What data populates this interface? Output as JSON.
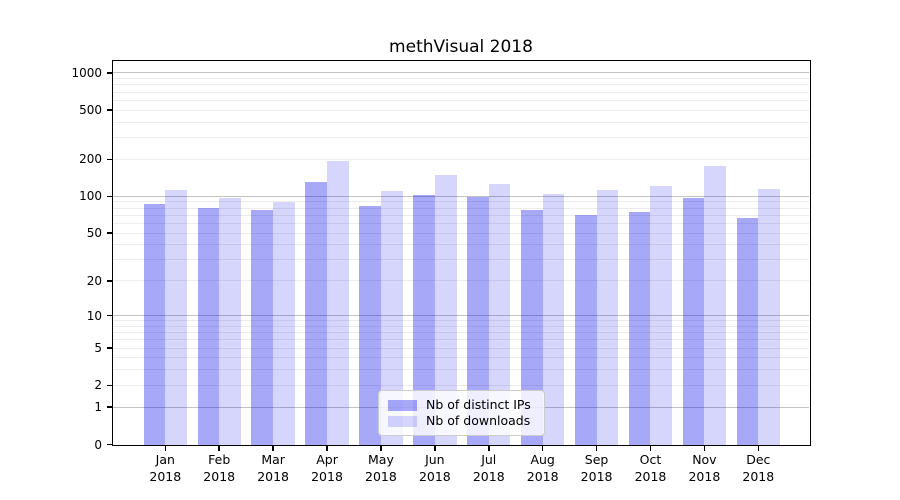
{
  "chart_data": {
    "type": "bar",
    "title": "methVisual 2018",
    "months": [
      "Jan",
      "Feb",
      "Mar",
      "Apr",
      "May",
      "Jun",
      "Jul",
      "Aug",
      "Sep",
      "Oct",
      "Nov",
      "Dec"
    ],
    "year_label": "2018",
    "series": [
      {
        "key": "distinct-ips",
        "name": "Nb of distinct IPs",
        "color": "rgba(0,0,235,0.34)",
        "values": [
          87,
          80,
          77,
          131,
          83,
          102,
          99,
          77,
          70,
          74,
          97,
          66
        ]
      },
      {
        "key": "downloads",
        "name": "Nb of downloads",
        "color": "rgba(0,0,235,0.16)",
        "values": [
          113,
          97,
          90,
          194,
          110,
          149,
          126,
          105,
          113,
          122,
          177,
          115
        ]
      }
    ],
    "xlabel": "",
    "ylabel": "",
    "y_axis": {
      "scale": "log1p",
      "tick_labels": [
        0,
        1,
        2,
        5,
        10,
        20,
        50,
        100,
        200,
        500,
        1000
      ],
      "range": [
        0,
        1250
      ],
      "major_gridlines": [
        1,
        10,
        100,
        1000
      ],
      "minor_gridlines": [
        2,
        3,
        4,
        5,
        6,
        7,
        8,
        9,
        20,
        30,
        40,
        50,
        60,
        70,
        80,
        90,
        200,
        300,
        400,
        500,
        600,
        700,
        800,
        900
      ]
    },
    "legend": {
      "position": "lower center",
      "frame": true
    },
    "grid": true,
    "colors": {
      "background": "#ffffff",
      "axis": "#000000",
      "text": "#000000",
      "major_grid": "#c3c3c3",
      "minor_grid": "#ececec",
      "legend_border": "#cccccc",
      "legend_bg": "rgba(255,255,255,0.8)"
    }
  }
}
